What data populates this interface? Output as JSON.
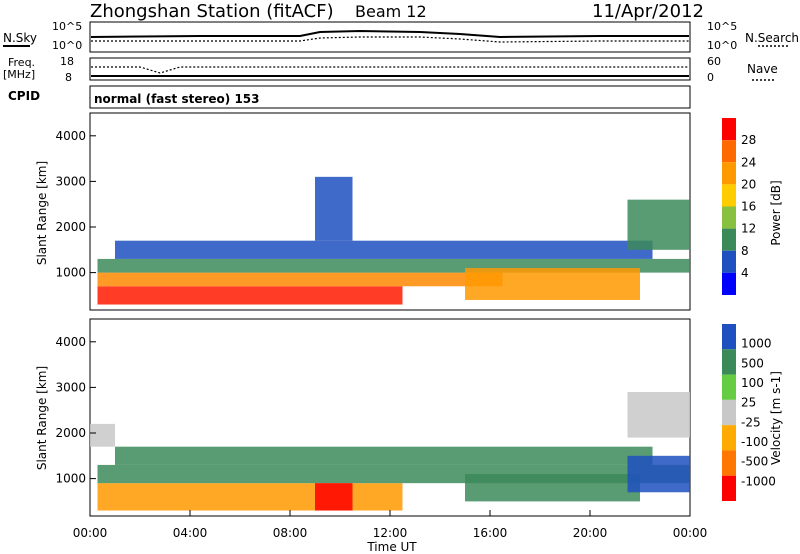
{
  "header": {
    "station": "Zhongshan Station (fitACF)",
    "beam": "Beam 12",
    "date": "11/Apr/2012"
  },
  "status_panels": {
    "nsky_label": "N.Sky",
    "nsky_ticks": [
      "10^5",
      "10^0"
    ],
    "nsearch_label": "N.Search",
    "nsearch_ticks": [
      "10^5",
      "10^0"
    ],
    "freq_label": "Freq.",
    "freq_unit": "[MHz]",
    "freq_ticks": [
      "18",
      "8"
    ],
    "nave_label": "Nave",
    "nave_ticks": [
      "60",
      "0"
    ],
    "cpid_label": "CPID",
    "cpid_text": "normal (fast stereo) 153"
  },
  "chart_data": [
    {
      "type": "heatmap",
      "name": "power-panel",
      "ylabel": "Slant Range [km]",
      "yticks": [
        "4000",
        "3000",
        "2000",
        "1000"
      ],
      "ylim": [
        180,
        4500
      ],
      "xlim_hours": [
        0,
        24
      ],
      "colorbar_label": "Power [dB]",
      "colorbar_ticks": [
        "28",
        "24",
        "20",
        "16",
        "12",
        "8",
        "4"
      ],
      "colorbar_colors": [
        "#ff0000",
        "#ff6a00",
        "#ff9900",
        "#ffcc00",
        "#88c040",
        "#3c8a5a",
        "#1e50c0",
        "#0000ff"
      ],
      "bands": [
        {
          "t0": 0.3,
          "t1": 12.5,
          "r0": 300,
          "r1": 700,
          "color": "#ff1a00"
        },
        {
          "t0": 0.3,
          "t1": 16.5,
          "r0": 700,
          "r1": 1000,
          "color": "#ff8800"
        },
        {
          "t0": 0.3,
          "t1": 24.0,
          "r0": 1000,
          "r1": 1300,
          "color": "#3c8a5a"
        },
        {
          "t0": 1.0,
          "t1": 22.5,
          "r0": 1300,
          "r1": 1700,
          "color": "#1e50c0"
        },
        {
          "t0": 15.0,
          "t1": 22.0,
          "r0": 400,
          "r1": 1100,
          "color": "#ff9900"
        },
        {
          "t0": 21.5,
          "t1": 24.0,
          "r0": 1500,
          "r1": 2600,
          "color": "#3c8a5a"
        },
        {
          "t0": 9.0,
          "t1": 10.5,
          "r0": 1700,
          "r1": 3100,
          "color": "#1e50c0"
        }
      ]
    },
    {
      "type": "heatmap",
      "name": "velocity-panel",
      "ylabel": "Slant Range [km]",
      "yticks": [
        "4000",
        "3000",
        "2000",
        "1000"
      ],
      "ylim": [
        180,
        4500
      ],
      "xlim_hours": [
        0,
        24
      ],
      "colorbar_label": "Velocity [m s-1]",
      "colorbar_ticks": [
        "1000",
        "500",
        "100",
        "25",
        "-25",
        "-100",
        "-500",
        "-1000"
      ],
      "colorbar_colors": [
        "#1e50c0",
        "#3c8a5a",
        "#66cc44",
        "#c8c8c8",
        "#ffaa00",
        "#ff7700",
        "#ff0000"
      ],
      "bands": [
        {
          "t0": 0.3,
          "t1": 12.5,
          "r0": 300,
          "r1": 900,
          "color": "#ff9900"
        },
        {
          "t0": 0.3,
          "t1": 24.0,
          "r0": 900,
          "r1": 1300,
          "color": "#3c8a5a"
        },
        {
          "t0": 1.0,
          "t1": 22.5,
          "r0": 1300,
          "r1": 1700,
          "color": "#3c8a5a"
        },
        {
          "t0": 15.0,
          "t1": 22.0,
          "r0": 500,
          "r1": 1100,
          "color": "#3c8a5a"
        },
        {
          "t0": 21.5,
          "t1": 24.0,
          "r0": 700,
          "r1": 1500,
          "color": "#1e50c0"
        },
        {
          "t0": 0.0,
          "t1": 1.0,
          "r0": 1700,
          "r1": 2200,
          "color": "#c8c8c8"
        },
        {
          "t0": 21.5,
          "t1": 24.0,
          "r0": 1900,
          "r1": 2900,
          "color": "#c8c8c8"
        },
        {
          "t0": 9.0,
          "t1": 10.5,
          "r0": 300,
          "r1": 900,
          "color": "#ff0000"
        }
      ]
    }
  ],
  "x_axis": {
    "ticks": [
      "00:00",
      "04:00",
      "08:00",
      "12:00",
      "16:00",
      "20:00",
      "00:00"
    ],
    "label": "Time UT"
  }
}
